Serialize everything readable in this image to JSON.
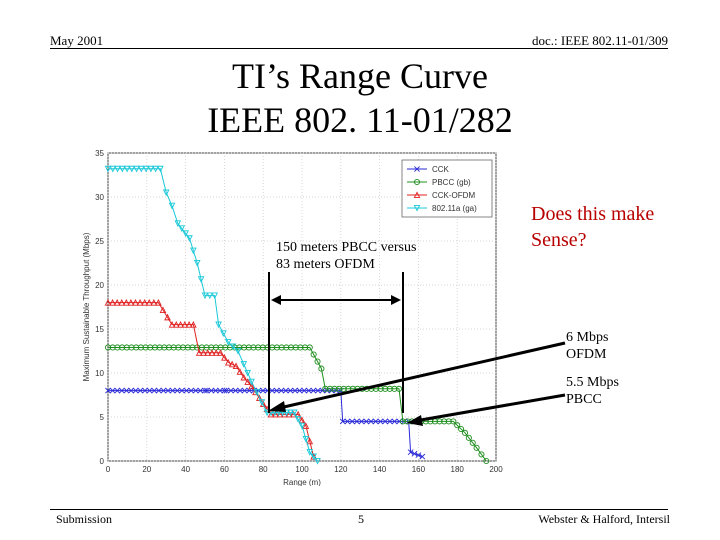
{
  "header": {
    "date": "May 2001",
    "doc": "doc.: IEEE 802.11-01/309"
  },
  "title": {
    "line1": "TI’s Range Curve",
    "line2": "IEEE 802. 11-01/282"
  },
  "annotations": {
    "compare_line1": "150 meters PBCC versus",
    "compare_line2": "83 meters OFDM",
    "question_line1": "Does this make",
    "question_line2": "Sense?",
    "ofdm_rate_line1": "6 Mbps",
    "ofdm_rate_line2": "OFDM",
    "pbcc_rate_line1": "5.5 Mbps",
    "pbcc_rate_line2": "PBCC"
  },
  "footer": {
    "left": "Submission",
    "page": "5",
    "right": "Webster & Halford, Intersil"
  },
  "colors": {
    "CCK": "#2a2ad8",
    "PBCC (gb)": "#1f8f1f",
    "CCK-OFDM": "#e02020",
    "802.11a (ga)": "#19c8d8",
    "question": "#b80000"
  },
  "chart_data": {
    "type": "line",
    "xlabel": "Range (m)",
    "ylabel": "Maximum Sustainable Throughput (Mbps)",
    "xlim": [
      0,
      200
    ],
    "ylim": [
      0,
      35
    ],
    "xticks": [
      0,
      20,
      40,
      60,
      80,
      100,
      120,
      140,
      160,
      180,
      200
    ],
    "yticks": [
      0,
      5,
      10,
      15,
      20,
      25,
      30,
      35
    ],
    "grid": true,
    "legend_position": "top-right",
    "series": [
      {
        "name": "CCK",
        "marker": "x",
        "x": [
          0,
          50,
          51,
          60,
          61,
          120,
          121,
          155,
          156,
          162
        ],
        "y": [
          8,
          8,
          8,
          8,
          8,
          8,
          4.5,
          4.5,
          1,
          0.5
        ]
      },
      {
        "name": "PBCC (gb)",
        "marker": "o",
        "x": [
          0,
          104,
          110,
          112,
          150,
          152,
          178,
          184,
          190,
          195
        ],
        "y": [
          12.9,
          12.9,
          10.5,
          8.2,
          8.2,
          4.5,
          4.5,
          3.2,
          1.5,
          0
        ]
      },
      {
        "name": "CCK-OFDM",
        "marker": "^",
        "x": [
          0,
          26,
          33,
          44,
          47,
          58,
          62,
          66,
          70,
          74,
          80,
          84,
          98,
          102,
          106
        ],
        "y": [
          18,
          18,
          15.5,
          15.5,
          12.3,
          12.3,
          11.2,
          10.8,
          9.5,
          8.5,
          6.5,
          5.3,
          5.3,
          4,
          0.5
        ]
      },
      {
        "name": "802.11a (ga)",
        "marker": "v",
        "x": [
          0,
          27,
          30,
          33,
          36,
          42,
          46,
          50,
          55,
          57,
          62,
          67,
          70,
          74,
          82,
          86,
          92,
          96,
          100,
          104,
          108
        ],
        "y": [
          33.2,
          33.2,
          30.5,
          29,
          27,
          25.3,
          22.5,
          18.8,
          18.8,
          15.5,
          13.5,
          12.5,
          11,
          9,
          5.5,
          5.5,
          5.5,
          5.5,
          4,
          1,
          0
        ]
      }
    ]
  }
}
